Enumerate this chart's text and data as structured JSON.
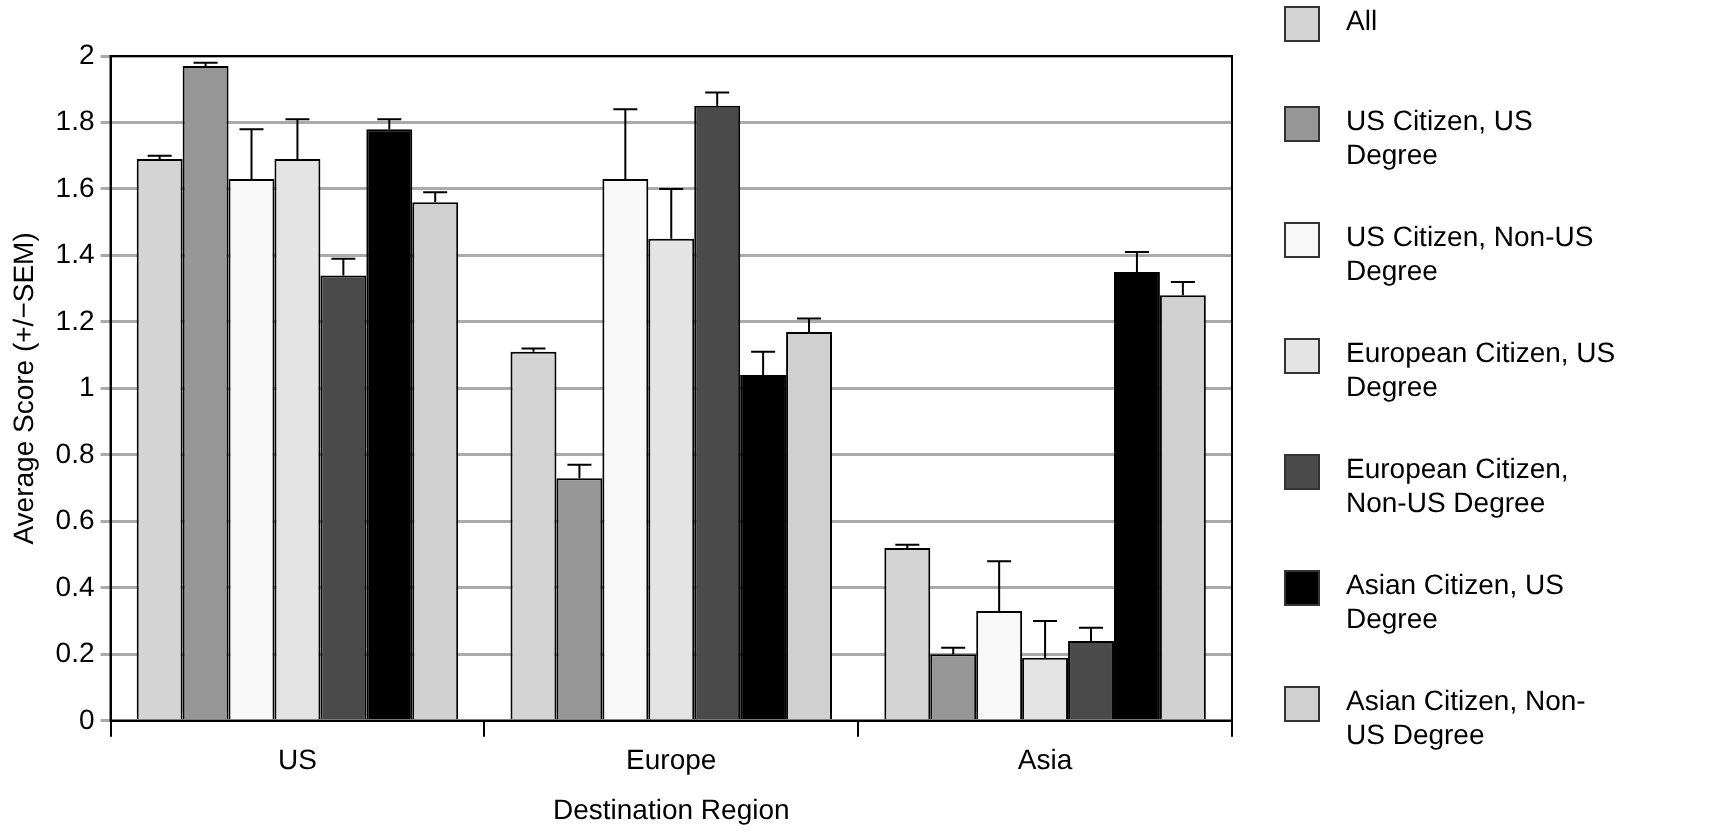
{
  "chart_data": {
    "type": "bar",
    "xlabel": "Destination Region",
    "ylabel": "Average Score (+/−SEM)",
    "categories": [
      "US",
      "Europe",
      "Asia"
    ],
    "series": [
      {
        "name": "All",
        "color": "#d4d4d4",
        "values": [
          1.69,
          1.11,
          0.52
        ],
        "errors": [
          [
            1.69,
            1.7
          ],
          [
            1.11,
            1.12
          ],
          [
            0.52,
            0.53
          ]
        ]
      },
      {
        "name": "US Citizen, US Degree",
        "color": "#969696",
        "values": [
          1.97,
          0.73,
          0.2
        ],
        "errors": [
          [
            1.97,
            1.98
          ],
          [
            0.73,
            0.77
          ],
          [
            0.2,
            0.22
          ]
        ]
      },
      {
        "name": "US Citizen, Non-US Degree",
        "color": "#f8f8f8",
        "values": [
          1.63,
          1.63,
          0.33
        ],
        "errors": [
          [
            1.63,
            1.78
          ],
          [
            1.63,
            1.84
          ],
          [
            0.33,
            0.48
          ]
        ]
      },
      {
        "name": "European Citizen, US Degree",
        "color": "#e4e4e4",
        "values": [
          1.69,
          1.45,
          0.19
        ],
        "errors": [
          [
            1.69,
            1.81
          ],
          [
            1.45,
            1.6
          ],
          [
            0.19,
            0.3
          ]
        ]
      },
      {
        "name": "European Citizen, Non-US Degree",
        "color": "#4a4a4a",
        "values": [
          1.34,
          1.85,
          0.24
        ],
        "errors": [
          [
            1.34,
            1.39
          ],
          [
            1.85,
            1.89
          ],
          [
            0.24,
            0.28
          ]
        ]
      },
      {
        "name": "Asian Citizen, US Degree",
        "color": "#000000",
        "values": [
          1.78,
          1.04,
          1.35
        ],
        "errors": [
          [
            1.78,
            1.81
          ],
          [
            1.04,
            1.11
          ],
          [
            1.35,
            1.41
          ]
        ]
      },
      {
        "name": "Asian Citizen, Non-US Degree",
        "color": "#d0d0d0",
        "values": [
          1.56,
          1.17,
          1.28
        ],
        "errors": [
          [
            1.56,
            1.59
          ],
          [
            1.17,
            1.21
          ],
          [
            1.28,
            1.32
          ]
        ]
      }
    ],
    "ylim": [
      0,
      2
    ],
    "yticks": [
      0,
      0.2,
      0.4,
      0.6,
      0.8,
      1,
      1.2,
      1.4,
      1.6,
      1.8,
      2
    ],
    "grid": "y",
    "legend": "right"
  }
}
